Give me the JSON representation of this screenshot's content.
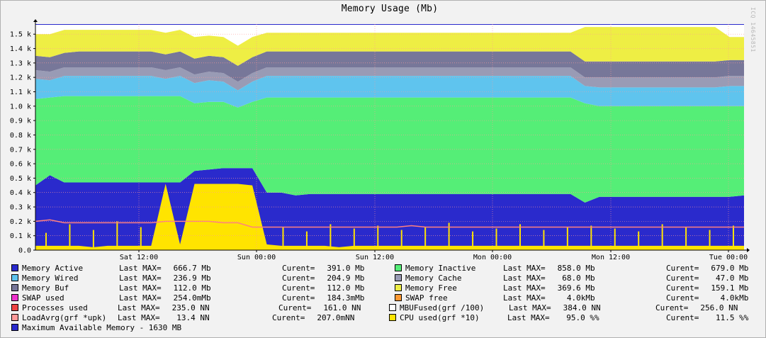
{
  "chart_data": {
    "type": "area",
    "title": "Memory Usage (Mb)",
    "watermark": "ICQ 14645851",
    "xlabel": "",
    "ylabel": "",
    "ylim": [
      0,
      1.57
    ],
    "y_unit": "k",
    "y_ticks": [
      "0.0",
      "0.1 k",
      "0.2 k",
      "0.3 k",
      "0.4 k",
      "0.5 k",
      "0.6 k",
      "0.7 k",
      "0.8 k",
      "0.9 k",
      "1.0 k",
      "1.1 k",
      "1.2 k",
      "1.3 k",
      "1.4 k",
      "1.5 k"
    ],
    "x_ticks": [
      "Sat 12:00",
      "Sun 00:00",
      "Sun 12:00",
      "Mon 00:00",
      "Mon 12:00",
      "Tue 00:00"
    ],
    "grid": true,
    "legend_placement": "bottom",
    "max_line": 1.63,
    "colors": {
      "active": "#2a2acc",
      "inactive": "#55ee77",
      "cache": "#5fc4ee",
      "wired": "#999bb5",
      "buf": "#777799",
      "free": "#eeee44",
      "cpu": "#ffe400",
      "processes": "#ff8080",
      "grid": "#ff9999",
      "axis": "#000000",
      "plot_bg": "#ffffff"
    },
    "series": [
      {
        "key": "active",
        "values": [
          0.45,
          0.52,
          0.47,
          0.47,
          0.47,
          0.47,
          0.47,
          0.47,
          0.47,
          0.47,
          0.47,
          0.55,
          0.56,
          0.57,
          0.57,
          0.57,
          0.4,
          0.4,
          0.38,
          0.39,
          0.39,
          0.39,
          0.39,
          0.39,
          0.39,
          0.39,
          0.39,
          0.39,
          0.39,
          0.39,
          0.39,
          0.39,
          0.39,
          0.39,
          0.39,
          0.39,
          0.39,
          0.39,
          0.33,
          0.37,
          0.37,
          0.37,
          0.37,
          0.37,
          0.37,
          0.37,
          0.37,
          0.37,
          0.37,
          0.38
        ]
      },
      {
        "key": "inactive",
        "values": [
          0.6,
          0.54,
          0.6,
          0.6,
          0.6,
          0.6,
          0.6,
          0.6,
          0.6,
          0.6,
          0.6,
          0.47,
          0.47,
          0.46,
          0.42,
          0.46,
          0.66,
          0.66,
          0.68,
          0.67,
          0.67,
          0.67,
          0.67,
          0.67,
          0.67,
          0.67,
          0.67,
          0.67,
          0.67,
          0.67,
          0.67,
          0.67,
          0.67,
          0.67,
          0.67,
          0.67,
          0.67,
          0.67,
          0.69,
          0.63,
          0.63,
          0.63,
          0.63,
          0.63,
          0.63,
          0.63,
          0.63,
          0.63,
          0.63,
          0.62
        ]
      },
      {
        "key": "cache",
        "values": [
          0.14,
          0.12,
          0.14,
          0.14,
          0.14,
          0.14,
          0.14,
          0.14,
          0.14,
          0.12,
          0.14,
          0.14,
          0.15,
          0.14,
          0.12,
          0.14,
          0.15,
          0.15,
          0.15,
          0.15,
          0.15,
          0.15,
          0.15,
          0.15,
          0.15,
          0.15,
          0.15,
          0.15,
          0.15,
          0.15,
          0.15,
          0.15,
          0.15,
          0.15,
          0.15,
          0.15,
          0.15,
          0.15,
          0.12,
          0.13,
          0.13,
          0.13,
          0.13,
          0.13,
          0.13,
          0.13,
          0.13,
          0.13,
          0.14,
          0.14
        ]
      },
      {
        "key": "wired",
        "values": [
          0.06,
          0.06,
          0.06,
          0.06,
          0.06,
          0.06,
          0.06,
          0.06,
          0.06,
          0.06,
          0.06,
          0.06,
          0.06,
          0.06,
          0.06,
          0.06,
          0.06,
          0.06,
          0.06,
          0.06,
          0.06,
          0.06,
          0.06,
          0.06,
          0.06,
          0.06,
          0.06,
          0.06,
          0.06,
          0.06,
          0.06,
          0.06,
          0.06,
          0.06,
          0.06,
          0.06,
          0.06,
          0.06,
          0.06,
          0.07,
          0.07,
          0.07,
          0.07,
          0.07,
          0.07,
          0.07,
          0.07,
          0.07,
          0.07,
          0.07
        ]
      },
      {
        "key": "buf",
        "values": [
          0.1,
          0.1,
          0.1,
          0.11,
          0.11,
          0.11,
          0.11,
          0.11,
          0.11,
          0.11,
          0.11,
          0.11,
          0.11,
          0.11,
          0.11,
          0.11,
          0.11,
          0.11,
          0.11,
          0.11,
          0.11,
          0.11,
          0.11,
          0.11,
          0.11,
          0.11,
          0.11,
          0.11,
          0.11,
          0.11,
          0.11,
          0.11,
          0.11,
          0.11,
          0.11,
          0.11,
          0.11,
          0.11,
          0.11,
          0.11,
          0.11,
          0.11,
          0.11,
          0.11,
          0.11,
          0.11,
          0.11,
          0.11,
          0.11,
          0.11
        ]
      },
      {
        "key": "free",
        "values": [
          0.15,
          0.16,
          0.16,
          0.15,
          0.15,
          0.15,
          0.15,
          0.15,
          0.15,
          0.15,
          0.15,
          0.15,
          0.14,
          0.14,
          0.14,
          0.14,
          0.13,
          0.13,
          0.13,
          0.13,
          0.13,
          0.13,
          0.13,
          0.13,
          0.13,
          0.13,
          0.13,
          0.13,
          0.13,
          0.13,
          0.13,
          0.13,
          0.13,
          0.13,
          0.13,
          0.13,
          0.13,
          0.13,
          0.24,
          0.24,
          0.24,
          0.24,
          0.24,
          0.24,
          0.24,
          0.24,
          0.24,
          0.24,
          0.16,
          0.16
        ]
      }
    ],
    "cpu_values": [
      0.03,
      0.03,
      0.03,
      0.03,
      0.02,
      0.03,
      0.03,
      0.03,
      0.03,
      0.46,
      0.04,
      0.46,
      0.46,
      0.46,
      0.46,
      0.45,
      0.04,
      0.03,
      0.03,
      0.03,
      0.03,
      0.02,
      0.03,
      0.03,
      0.03,
      0.03,
      0.03,
      0.03,
      0.03,
      0.03,
      0.03,
      0.03,
      0.03,
      0.03,
      0.03,
      0.03,
      0.03,
      0.03,
      0.03,
      0.03,
      0.03,
      0.03,
      0.03,
      0.03,
      0.03,
      0.03,
      0.03,
      0.03,
      0.03,
      0.03
    ],
    "cpu_spikes": [
      0.12,
      0.18,
      0.14,
      0.2,
      0.16,
      0.13,
      0.17,
      0.15,
      0.19,
      0.14,
      0.16,
      0.13,
      0.18,
      0.15,
      0.17,
      0.14,
      0.16,
      0.19,
      0.13,
      0.15,
      0.18,
      0.14,
      0.16,
      0.17,
      0.15,
      0.13,
      0.18,
      0.16,
      0.14,
      0.17
    ],
    "processes_values": [
      0.2,
      0.21,
      0.19,
      0.19,
      0.19,
      0.19,
      0.19,
      0.19,
      0.19,
      0.2,
      0.2,
      0.2,
      0.2,
      0.19,
      0.19,
      0.16,
      0.16,
      0.16,
      0.16,
      0.16,
      0.16,
      0.16,
      0.16,
      0.16,
      0.16,
      0.16,
      0.17,
      0.16,
      0.16,
      0.16,
      0.16,
      0.16,
      0.16,
      0.16,
      0.16,
      0.16,
      0.16,
      0.16,
      0.16,
      0.16,
      0.16,
      0.16,
      0.16,
      0.16,
      0.16,
      0.16,
      0.16,
      0.16,
      0.16,
      0.16
    ]
  },
  "legend": [
    {
      "name": "Memory Active",
      "color": "#2a2acc",
      "max_label": "Last MAX=",
      "max": "666.7 Mb",
      "cur_label": "Curent=",
      "cur": "391.0 Mb"
    },
    {
      "name": "Memory Inactive",
      "color": "#55ee77",
      "max_label": "Last MAX=",
      "max": "858.0 Mb",
      "cur_label": "Curent=",
      "cur": "679.0 Mb"
    },
    {
      "name": "Memory Wired",
      "color": "#5fc4ee",
      "max_label": "Last MAX=",
      "max": "236.9 Mb",
      "cur_label": "Curent=",
      "cur": "204.9 Mb"
    },
    {
      "name": "Memory Cache",
      "color": "#999bb5",
      "max_label": "Last MAX=",
      "max": "68.0 Mb",
      "cur_label": "Curent=",
      "cur": "47.0 Mb"
    },
    {
      "name": "Memory Buf",
      "color": "#777799",
      "max_label": "Last MAX=",
      "max": "112.0 Mb",
      "cur_label": "Curent=",
      "cur": "112.0 Mb"
    },
    {
      "name": "Memory Free",
      "color": "#eeee44",
      "max_label": "Last MAX=",
      "max": "369.6 Mb",
      "cur_label": "Curent=",
      "cur": "159.1 Mb"
    },
    {
      "name": "SWAP used",
      "color": "#ee33cc",
      "max_label": "Last MAX=",
      "max": "254.0mMb",
      "cur_label": "Curent=",
      "cur": "184.3mMb"
    },
    {
      "name": "SWAP free",
      "color": "#ff9933",
      "max_label": "Last MAX=",
      "max": "4.0kMb",
      "cur_label": "Curent=",
      "cur": "4.0kMb"
    },
    {
      "name": "Processes used",
      "color": "#ee4444",
      "max_label": "Last MAX=",
      "max": "235.0 NN",
      "cur_label": "Curent=",
      "cur": "161.0 NN"
    },
    {
      "name": "MBUFused(grf /100)",
      "color": "#ffffff",
      "max_label": "Last MAX=",
      "max": "384.0 NN",
      "cur_label": "Curent=",
      "cur": "256.0 NN"
    },
    {
      "name": "LoadAvrg(grf *upk)",
      "color": "#ff9999",
      "max_label": "Last MAX=",
      "max": "13.4 NN",
      "cur_label": "Curent=",
      "cur": "207.0mNN"
    },
    {
      "name": "CPU used(grf *10)",
      "color": "#ffe400",
      "max_label": "Last MAX=",
      "max": "95.0 %%",
      "cur_label": "Curent=",
      "cur": "11.5 %%"
    },
    {
      "name": "Maximum Available Memory - 1630 MB",
      "color": "#2a2acc"
    }
  ]
}
